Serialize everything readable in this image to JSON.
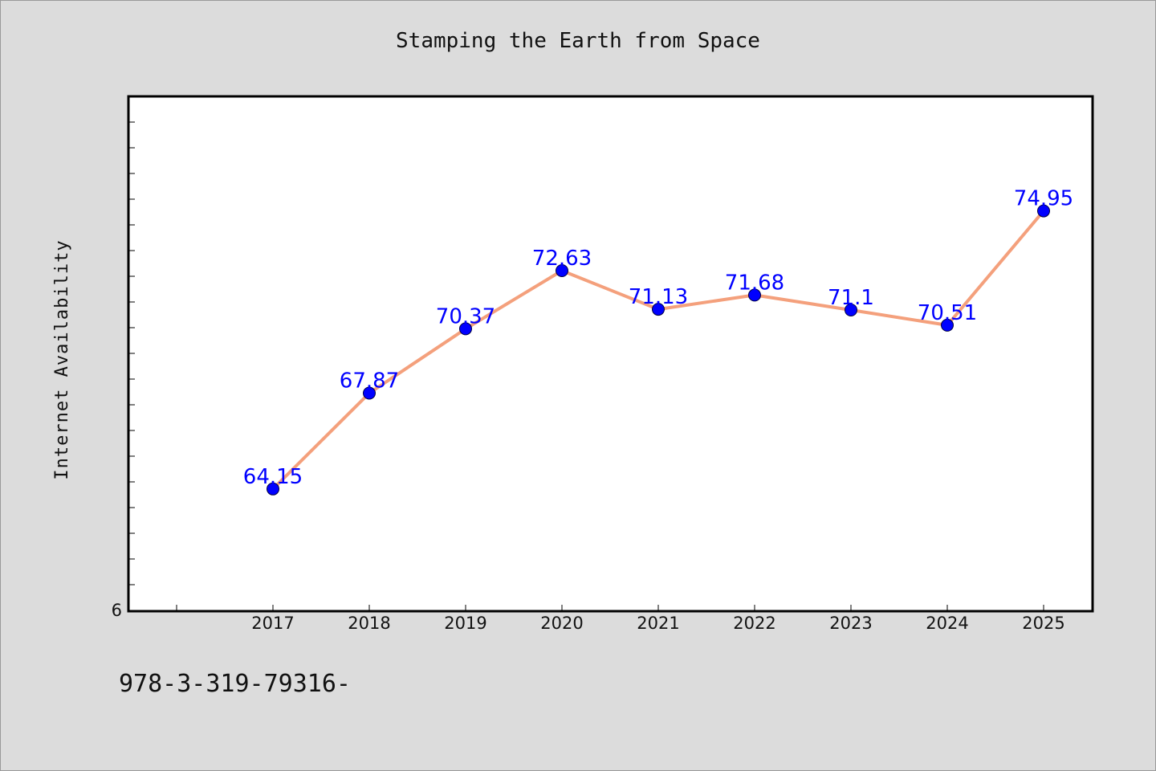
{
  "page": {
    "footer_text": "978-3-319-79316-"
  },
  "chart_data": {
    "type": "line",
    "title": "Stamping the Earth from Space",
    "xlabel": "",
    "ylabel": "Internet Availability",
    "categories": [
      "2017",
      "2018",
      "2019",
      "2020",
      "2021",
      "2022",
      "2023",
      "2024",
      "2025"
    ],
    "series": [
      {
        "values": [
          64.15,
          67.87,
          70.37,
          72.63,
          71.13,
          71.68,
          71.1,
          70.51,
          74.95
        ],
        "labels": [
          "64.15",
          "67.87",
          "70.37",
          "72.63",
          "71.13",
          "71.68",
          "71.1",
          "70.51",
          "74.95"
        ],
        "line_color": "#f4a07c",
        "marker_color": "#0000ff"
      }
    ],
    "y_tick_labels": [
      "6"
    ],
    "ylim": [
      59.4,
      79.4
    ],
    "grid": false,
    "legend": "none",
    "colors": {
      "plot_bg": "#ffffff",
      "page_bg": "#dcdcdc",
      "frame": "#000000",
      "label": "#0000ff"
    }
  }
}
